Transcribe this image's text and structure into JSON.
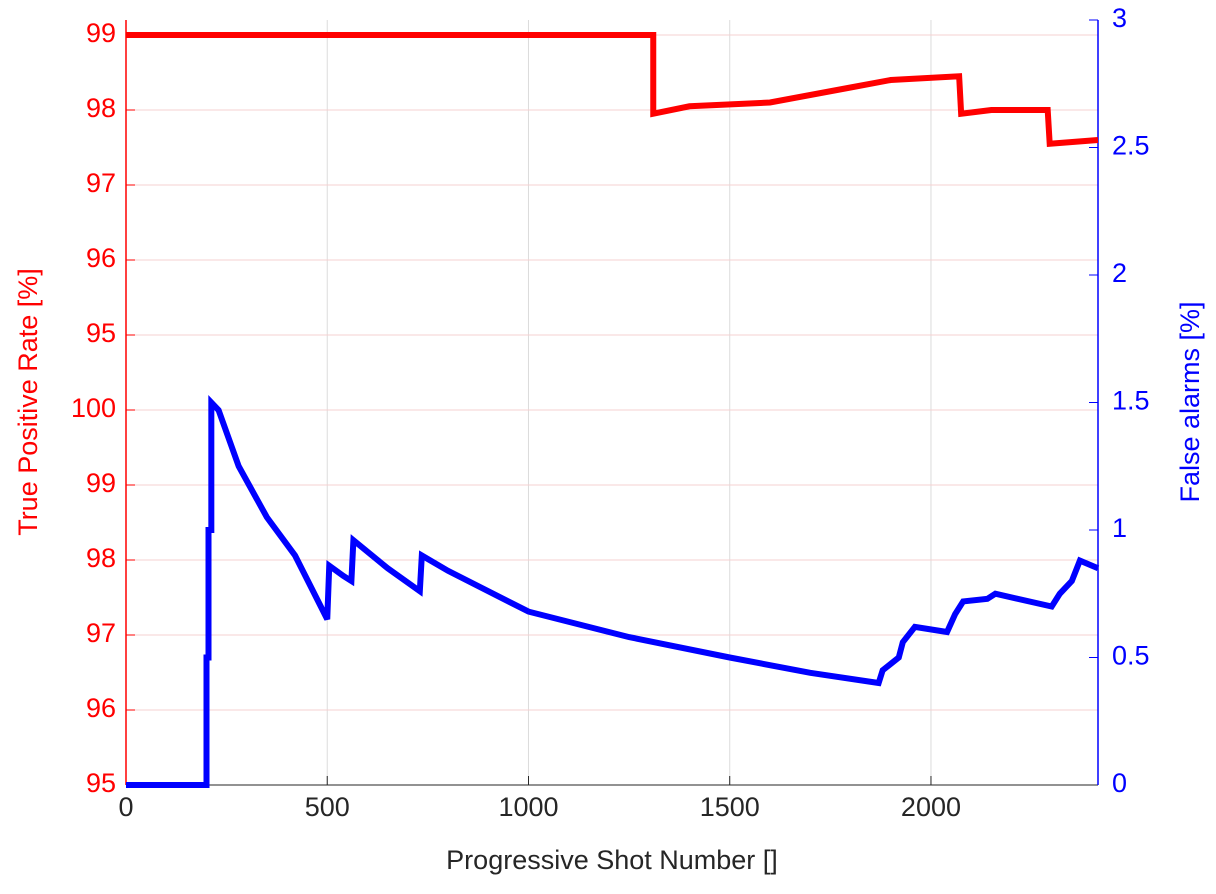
{
  "chart_data": {
    "type": "line",
    "xlabel": "Progressive Shot Number []",
    "ylabel": "True Positive Rate [%]",
    "y2label": "False alarms [%]",
    "xlim": [
      0,
      2415
    ],
    "xticks": [
      0,
      500,
      1000,
      1500,
      2000
    ],
    "ylim": [
      89,
      99.2
    ],
    "yticks": [
      {
        "value": 89,
        "label": "95"
      },
      {
        "value": 90,
        "label": "96"
      },
      {
        "value": 91,
        "label": "97"
      },
      {
        "value": 92,
        "label": "98"
      },
      {
        "value": 93,
        "label": "99"
      },
      {
        "value": 94,
        "label": "100"
      },
      95,
      96,
      97,
      98,
      99
    ],
    "y2lim": [
      0,
      3
    ],
    "y2ticks": [
      0,
      0.5,
      1,
      1.5,
      2,
      2.5,
      3
    ],
    "ycolor": "#ff0000",
    "y2color": "#0000ff",
    "grid": true,
    "series": [
      {
        "color": "#ff0000",
        "axis": "y",
        "x": [
          0,
          1310,
          1310,
          1400,
          1600,
          1800,
          1900,
          2070,
          2075,
          2150,
          2290,
          2295,
          2415
        ],
        "values": [
          99,
          99,
          97.95,
          98.05,
          98.1,
          98.3,
          98.4,
          98.45,
          97.95,
          98.0,
          98.0,
          97.55,
          97.6
        ]
      },
      {
        "color": "#0000ff",
        "axis": "y2",
        "x": [
          0,
          200,
          200,
          205,
          205,
          212,
          212,
          230,
          280,
          350,
          420,
          500,
          505,
          540,
          560,
          565,
          650,
          730,
          735,
          800,
          1000,
          1250,
          1500,
          1700,
          1870,
          1880,
          1920,
          1930,
          1960,
          2040,
          2060,
          2080,
          2140,
          2160,
          2300,
          2320,
          2350,
          2370,
          2415
        ],
        "values": [
          0,
          0,
          0.5,
          0.5,
          1.0,
          1.0,
          1.5,
          1.47,
          1.25,
          1.05,
          0.9,
          0.65,
          0.86,
          0.82,
          0.8,
          0.96,
          0.85,
          0.76,
          0.9,
          0.84,
          0.68,
          0.58,
          0.5,
          0.44,
          0.4,
          0.45,
          0.5,
          0.56,
          0.62,
          0.6,
          0.67,
          0.72,
          0.73,
          0.75,
          0.7,
          0.75,
          0.8,
          0.88,
          0.85
        ]
      }
    ]
  }
}
